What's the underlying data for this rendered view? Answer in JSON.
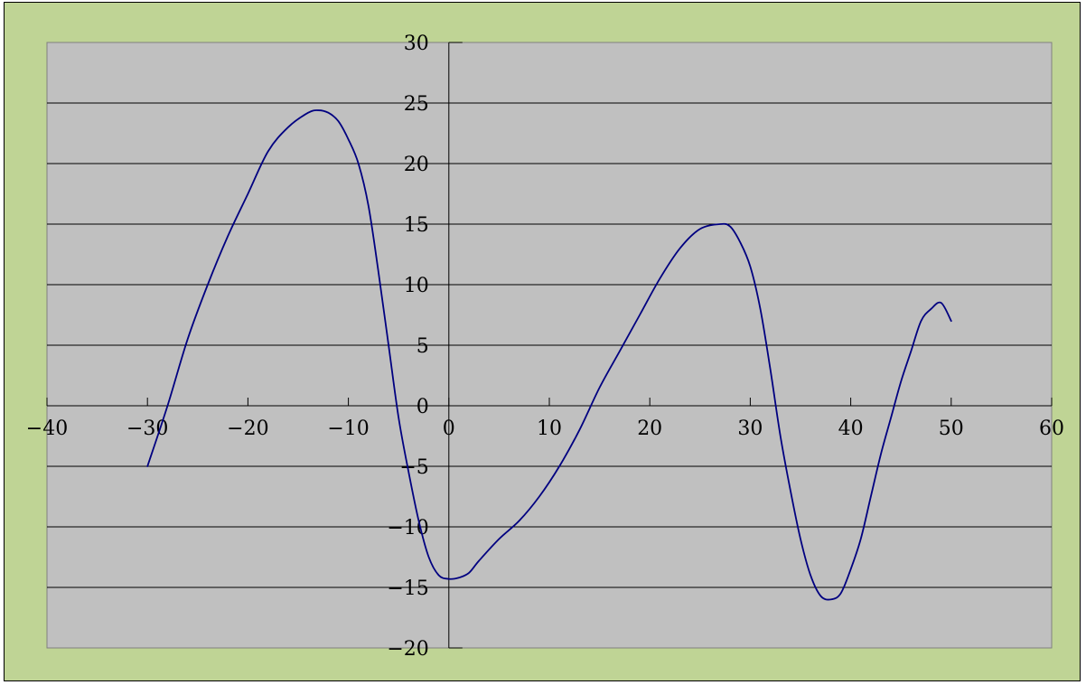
{
  "chart_data": {
    "type": "line",
    "title": "",
    "xlabel": "",
    "ylabel": "",
    "xlim": [
      -40,
      60
    ],
    "ylim": [
      -20,
      30
    ],
    "x_ticks": [
      -40,
      -30,
      -20,
      -10,
      0,
      10,
      20,
      30,
      40,
      50,
      60
    ],
    "y_ticks": [
      -20,
      -15,
      -10,
      -5,
      0,
      5,
      10,
      15,
      20,
      25,
      30
    ],
    "x_tick_labels": [
      "−40",
      "−30",
      "−20",
      "−10",
      "0",
      "10",
      "20",
      "30",
      "40",
      "50",
      "60"
    ],
    "y_tick_labels": [
      "−20",
      "−15",
      "−10",
      "−5",
      "0",
      "5",
      "10",
      "15",
      "20",
      "25",
      "30"
    ],
    "grid": "horizontal",
    "legend": "none",
    "series": [
      {
        "x": [
          -30,
          -28,
          -26,
          -24,
          -22,
          -20,
          -18,
          -16,
          -14,
          -13,
          -12,
          -11,
          -10,
          -9,
          -8,
          -7,
          -6,
          -5,
          -4,
          -3,
          -2,
          -1,
          0,
          1,
          2,
          3,
          5,
          7,
          9,
          11,
          13,
          15,
          17,
          19,
          21,
          23,
          25,
          27,
          28,
          29,
          30,
          31,
          32,
          33,
          34,
          35,
          36,
          37,
          38,
          39,
          40,
          41,
          42,
          43,
          44,
          45,
          46,
          47,
          48,
          49,
          50
        ],
        "y": [
          -5,
          0,
          5.5,
          10,
          14,
          17.5,
          21,
          23,
          24.2,
          24.4,
          24.2,
          23.5,
          22,
          20,
          16.5,
          11,
          5,
          -1,
          -5.5,
          -9.5,
          -12.5,
          -14,
          -14.3,
          -14.2,
          -13.8,
          -12.8,
          -11,
          -9.5,
          -7.5,
          -5,
          -2,
          1.5,
          4.5,
          7.5,
          10.5,
          13,
          14.6,
          15,
          14.8,
          13.5,
          11.5,
          8,
          3,
          -2.5,
          -7,
          -11,
          -14,
          -15.7,
          -16,
          -15.5,
          -13.5,
          -11,
          -7.5,
          -4,
          -1,
          2,
          4.5,
          7,
          8,
          8.5,
          7
        ]
      }
    ]
  },
  "colors": {
    "frame_background": "#bfd495",
    "plot_background": "#c0c0c0",
    "gridline": "#000000",
    "series_line": "#000080"
  }
}
